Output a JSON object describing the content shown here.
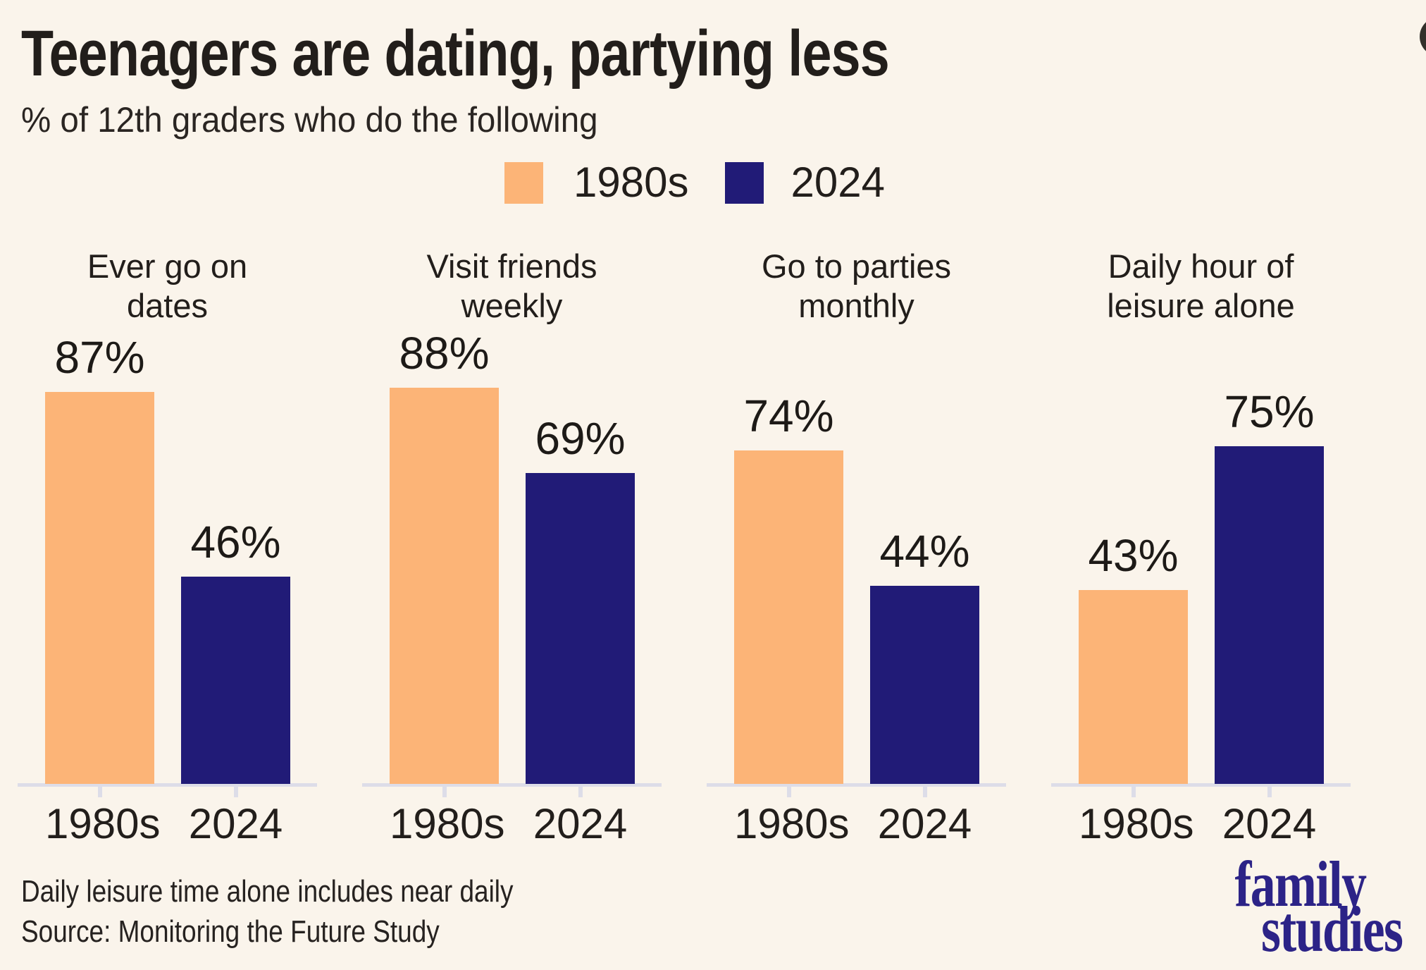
{
  "header": {
    "title": "Teenagers are dating, partying less",
    "subtitle": "% of 12th graders who do the following"
  },
  "legend": {
    "items": [
      {
        "label": "1980s",
        "color": "#FCB477"
      },
      {
        "label": "2024",
        "color": "#211B77"
      }
    ]
  },
  "chart_data": {
    "type": "bar",
    "title": "Teenagers are dating, partying less",
    "subtitle": "% of 12th graders who do the following",
    "categories": [
      "Ever go on dates",
      "Visit friends weekly",
      "Go to parties monthly",
      "Daily hour of leisure alone"
    ],
    "category_title_lines": [
      [
        "Ever go on",
        "dates"
      ],
      [
        "Visit friends",
        "weekly"
      ],
      [
        "Go to parties",
        "monthly"
      ],
      [
        "Daily hour of",
        "leisure alone"
      ]
    ],
    "series": [
      {
        "name": "1980s",
        "color": "#FCB477",
        "values": [
          87,
          88,
          74,
          43
        ]
      },
      {
        "name": "2024",
        "color": "#211B77",
        "values": [
          46,
          69,
          44,
          75
        ]
      }
    ],
    "value_suffix": "%",
    "ylabel": "",
    "xlabel": "",
    "ylim": [
      0,
      100
    ],
    "grid": false,
    "legend_position": "top"
  },
  "footer": {
    "note": "Daily leisure time alone includes near daily",
    "source": "Source: Monitoring the Future Study"
  },
  "logo": {
    "line1": "family",
    "line2": "studies"
  },
  "theme": {
    "bg": "#FAF4EB",
    "axis": "#DDDDE8",
    "text": "#221E1B",
    "logo": "#2C2387",
    "corner": "#33302B"
  }
}
